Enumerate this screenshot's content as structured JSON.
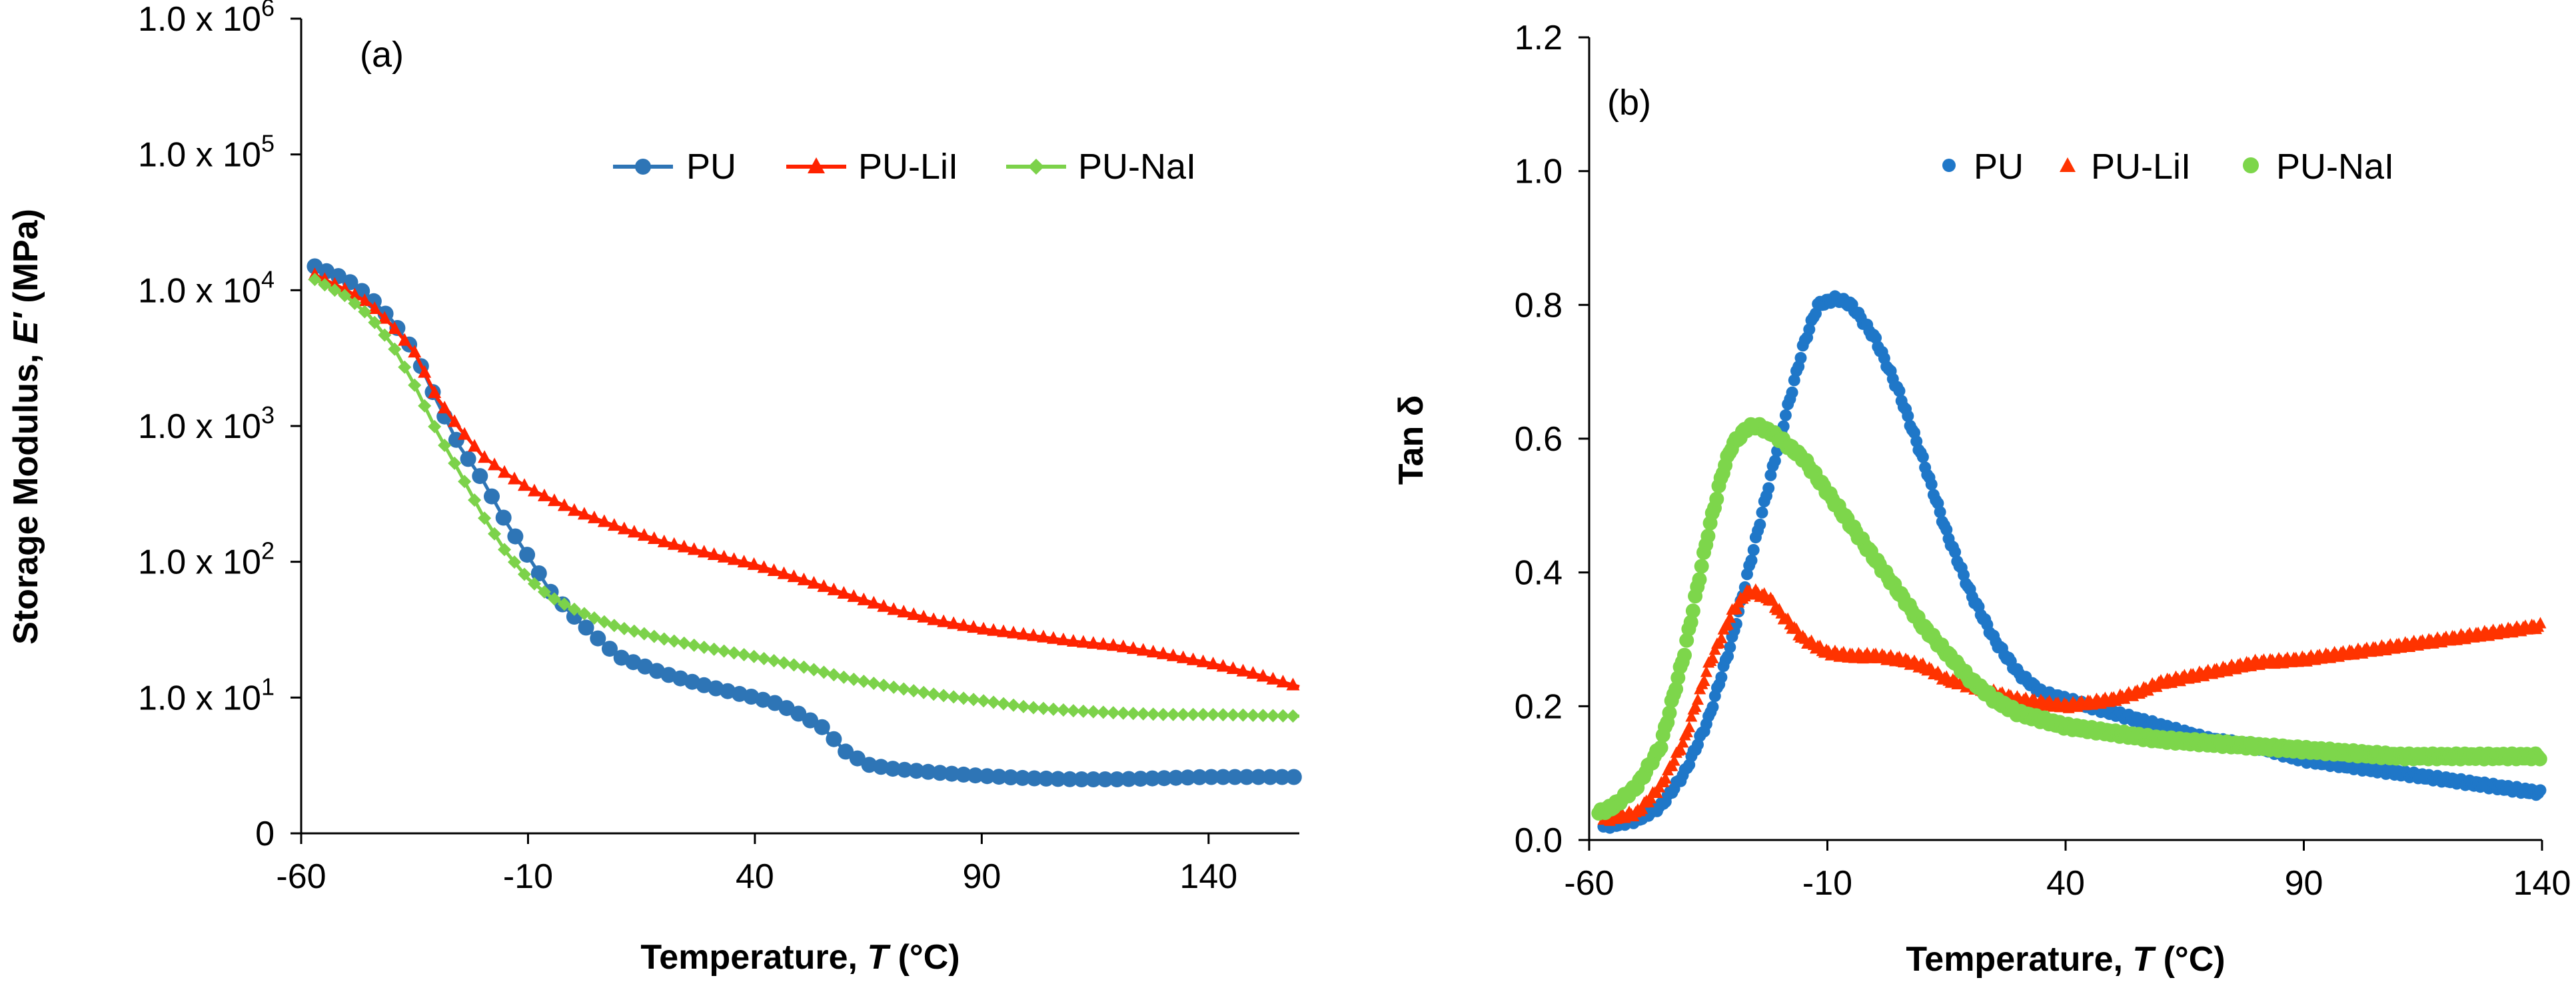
{
  "chart_data": [
    {
      "panel_label": "(a)",
      "type": "scatter",
      "y_scale": "log",
      "xlabel_prefix": "Temperature, ",
      "xlabel_var": "T",
      "xlabel_suffix": " (°C)",
      "ylabel_prefix": "Storage Modulus, ",
      "ylabel_var": "E'",
      "ylabel_suffix": " (MPa)",
      "xlim": [
        -60,
        160
      ],
      "ylim_exp": [
        0,
        6
      ],
      "x_ticks": [
        "-60",
        "-10",
        "40",
        "90",
        "140"
      ],
      "x_tick_values": [
        -60,
        -10,
        40,
        90,
        140
      ],
      "y_ticks": [
        {
          "base": "0",
          "exp": ""
        },
        {
          "base": "1.0 x 10",
          "exp": "1"
        },
        {
          "base": "1.0 x 10",
          "exp": "2"
        },
        {
          "base": "1.0 x 10",
          "exp": "3"
        },
        {
          "base": "1.0 x 10",
          "exp": "4"
        },
        {
          "base": "1.0 x 10",
          "exp": "5"
        },
        {
          "base": "1.0 x 10",
          "exp": "6"
        }
      ],
      "legend_position": "top-right",
      "series": [
        {
          "name": "PU",
          "color": "#2e75b6",
          "marker": "circle",
          "x": [
            -57,
            -50,
            -45,
            -40,
            -35,
            -30,
            -25,
            -20,
            -15,
            -10,
            -5,
            0,
            5,
            10,
            20,
            30,
            40,
            45,
            50,
            55,
            60,
            65,
            70,
            80,
            90,
            100,
            110,
            120,
            130,
            140,
            150,
            160
          ],
          "y": [
            15000,
            12000,
            9000,
            6000,
            3500,
            1500,
            700,
            400,
            200,
            110,
            60,
            40,
            28,
            20,
            15,
            12,
            10,
            9,
            7.5,
            6,
            4,
            3.2,
            3.0,
            2.8,
            2.65,
            2.55,
            2.5,
            2.5,
            2.55,
            2.6,
            2.6,
            2.6
          ]
        },
        {
          "name": "PU-LiI",
          "color": "#ff2200",
          "marker": "triangle",
          "x": [
            -57,
            -50,
            -45,
            -40,
            -35,
            -30,
            -25,
            -20,
            -15,
            -10,
            -5,
            0,
            10,
            20,
            30,
            40,
            50,
            60,
            70,
            80,
            90,
            100,
            110,
            120,
            130,
            140,
            150,
            160
          ],
          "y": [
            13000,
            10000,
            8000,
            5500,
            3500,
            1600,
            950,
            600,
            450,
            350,
            290,
            240,
            180,
            140,
            115,
            95,
            75,
            58,
            45,
            37,
            32,
            29,
            26,
            24,
            21,
            18,
            15,
            12
          ]
        },
        {
          "name": "PU-NaI",
          "color": "#7cd24a",
          "marker": "diamond",
          "x": [
            -57,
            -50,
            -45,
            -40,
            -35,
            -30,
            -25,
            -20,
            -15,
            -10,
            -5,
            0,
            5,
            10,
            20,
            30,
            40,
            50,
            60,
            70,
            80,
            90,
            100,
            110,
            120,
            130,
            140,
            150,
            160
          ],
          "y": [
            12000,
            9000,
            6500,
            4000,
            2000,
            900,
            450,
            220,
            120,
            75,
            55,
            45,
            38,
            33,
            27,
            23,
            20,
            17,
            14,
            12,
            10.5,
            9.5,
            8.5,
            8,
            7.7,
            7.5,
            7.5,
            7.4,
            7.3
          ]
        }
      ]
    },
    {
      "panel_label": "(b)",
      "type": "scatter",
      "xlabel_prefix": "Temperature, ",
      "xlabel_var": "T",
      "xlabel_suffix": " (°C)",
      "ylabel": "Tan δ",
      "xlim": [
        -60,
        140
      ],
      "ylim": [
        0,
        1.2
      ],
      "x_ticks": [
        "-60",
        "-10",
        "40",
        "90",
        "140"
      ],
      "x_tick_values": [
        -60,
        -10,
        40,
        90,
        140
      ],
      "y_ticks": [
        "0.0",
        "0.2",
        "0.4",
        "0.6",
        "0.8",
        "1.0",
        "1.2"
      ],
      "y_tick_values": [
        0,
        0.2,
        0.4,
        0.6,
        0.8,
        1.0,
        1.2
      ],
      "legend_position": "top-center",
      "series": [
        {
          "name": "PU",
          "color": "#1f77c8",
          "marker": "circle",
          "x": [
            -57,
            -50,
            -45,
            -40,
            -35,
            -30,
            -25,
            -20,
            -15,
            -12,
            -8,
            -5,
            0,
            5,
            10,
            15,
            20,
            25,
            30,
            35,
            40,
            45,
            50,
            55,
            60,
            70,
            80,
            90,
            100,
            110,
            120,
            130,
            140
          ],
          "y": [
            0.02,
            0.03,
            0.05,
            0.1,
            0.18,
            0.3,
            0.45,
            0.6,
            0.74,
            0.8,
            0.81,
            0.8,
            0.75,
            0.67,
            0.57,
            0.46,
            0.37,
            0.3,
            0.25,
            0.22,
            0.21,
            0.2,
            0.19,
            0.18,
            0.17,
            0.15,
            0.14,
            0.12,
            0.11,
            0.1,
            0.09,
            0.08,
            0.07
          ]
        },
        {
          "name": "PU-LiI",
          "color": "#ff3300",
          "marker": "triangle",
          "x": [
            -57,
            -50,
            -45,
            -40,
            -35,
            -30,
            -27,
            -25,
            -22,
            -20,
            -15,
            -10,
            -5,
            0,
            5,
            10,
            15,
            20,
            25,
            30,
            35,
            40,
            45,
            50,
            55,
            60,
            70,
            80,
            90,
            100,
            110,
            120,
            130,
            140
          ],
          "y": [
            0.03,
            0.04,
            0.08,
            0.15,
            0.26,
            0.34,
            0.37,
            0.37,
            0.36,
            0.34,
            0.3,
            0.28,
            0.275,
            0.275,
            0.27,
            0.26,
            0.24,
            0.23,
            0.22,
            0.21,
            0.205,
            0.2,
            0.205,
            0.21,
            0.22,
            0.235,
            0.25,
            0.265,
            0.27,
            0.28,
            0.29,
            0.3,
            0.31,
            0.32
          ]
        },
        {
          "name": "PU-NaI",
          "color": "#7dd64b",
          "marker": "circle",
          "x": [
            -58,
            -55,
            -50,
            -45,
            -40,
            -35,
            -32,
            -30,
            -27,
            -25,
            -22,
            -20,
            -15,
            -10,
            -5,
            0,
            5,
            10,
            15,
            20,
            25,
            30,
            40,
            50,
            60,
            70,
            80,
            90,
            100,
            110,
            120,
            130,
            140
          ],
          "y": [
            0.04,
            0.05,
            0.08,
            0.14,
            0.28,
            0.46,
            0.55,
            0.59,
            0.615,
            0.62,
            0.61,
            0.6,
            0.57,
            0.52,
            0.47,
            0.42,
            0.37,
            0.32,
            0.28,
            0.24,
            0.21,
            0.19,
            0.17,
            0.16,
            0.15,
            0.145,
            0.14,
            0.135,
            0.13,
            0.125,
            0.125,
            0.125,
            0.125
          ]
        }
      ]
    }
  ]
}
